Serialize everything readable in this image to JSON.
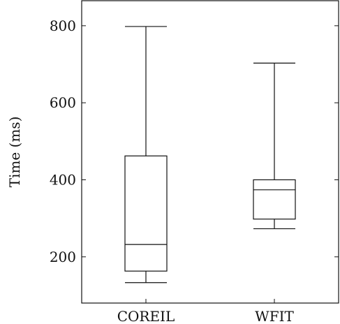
{
  "chart_data": {
    "type": "boxplot",
    "categories": [
      "COREIL",
      "WFIT"
    ],
    "series": [
      {
        "category": "COREIL",
        "min": 133,
        "q1": 163,
        "median": 232,
        "q3": 462,
        "max": 798
      },
      {
        "category": "WFIT",
        "min": 273,
        "q1": 298,
        "median": 374,
        "q3": 400,
        "max": 703
      }
    ],
    "ylabel": "Time (ms)",
    "xlabel": "",
    "yticks": [
      200,
      400,
      600,
      800
    ],
    "ylim": [
      80,
      865
    ],
    "grid": false
  }
}
